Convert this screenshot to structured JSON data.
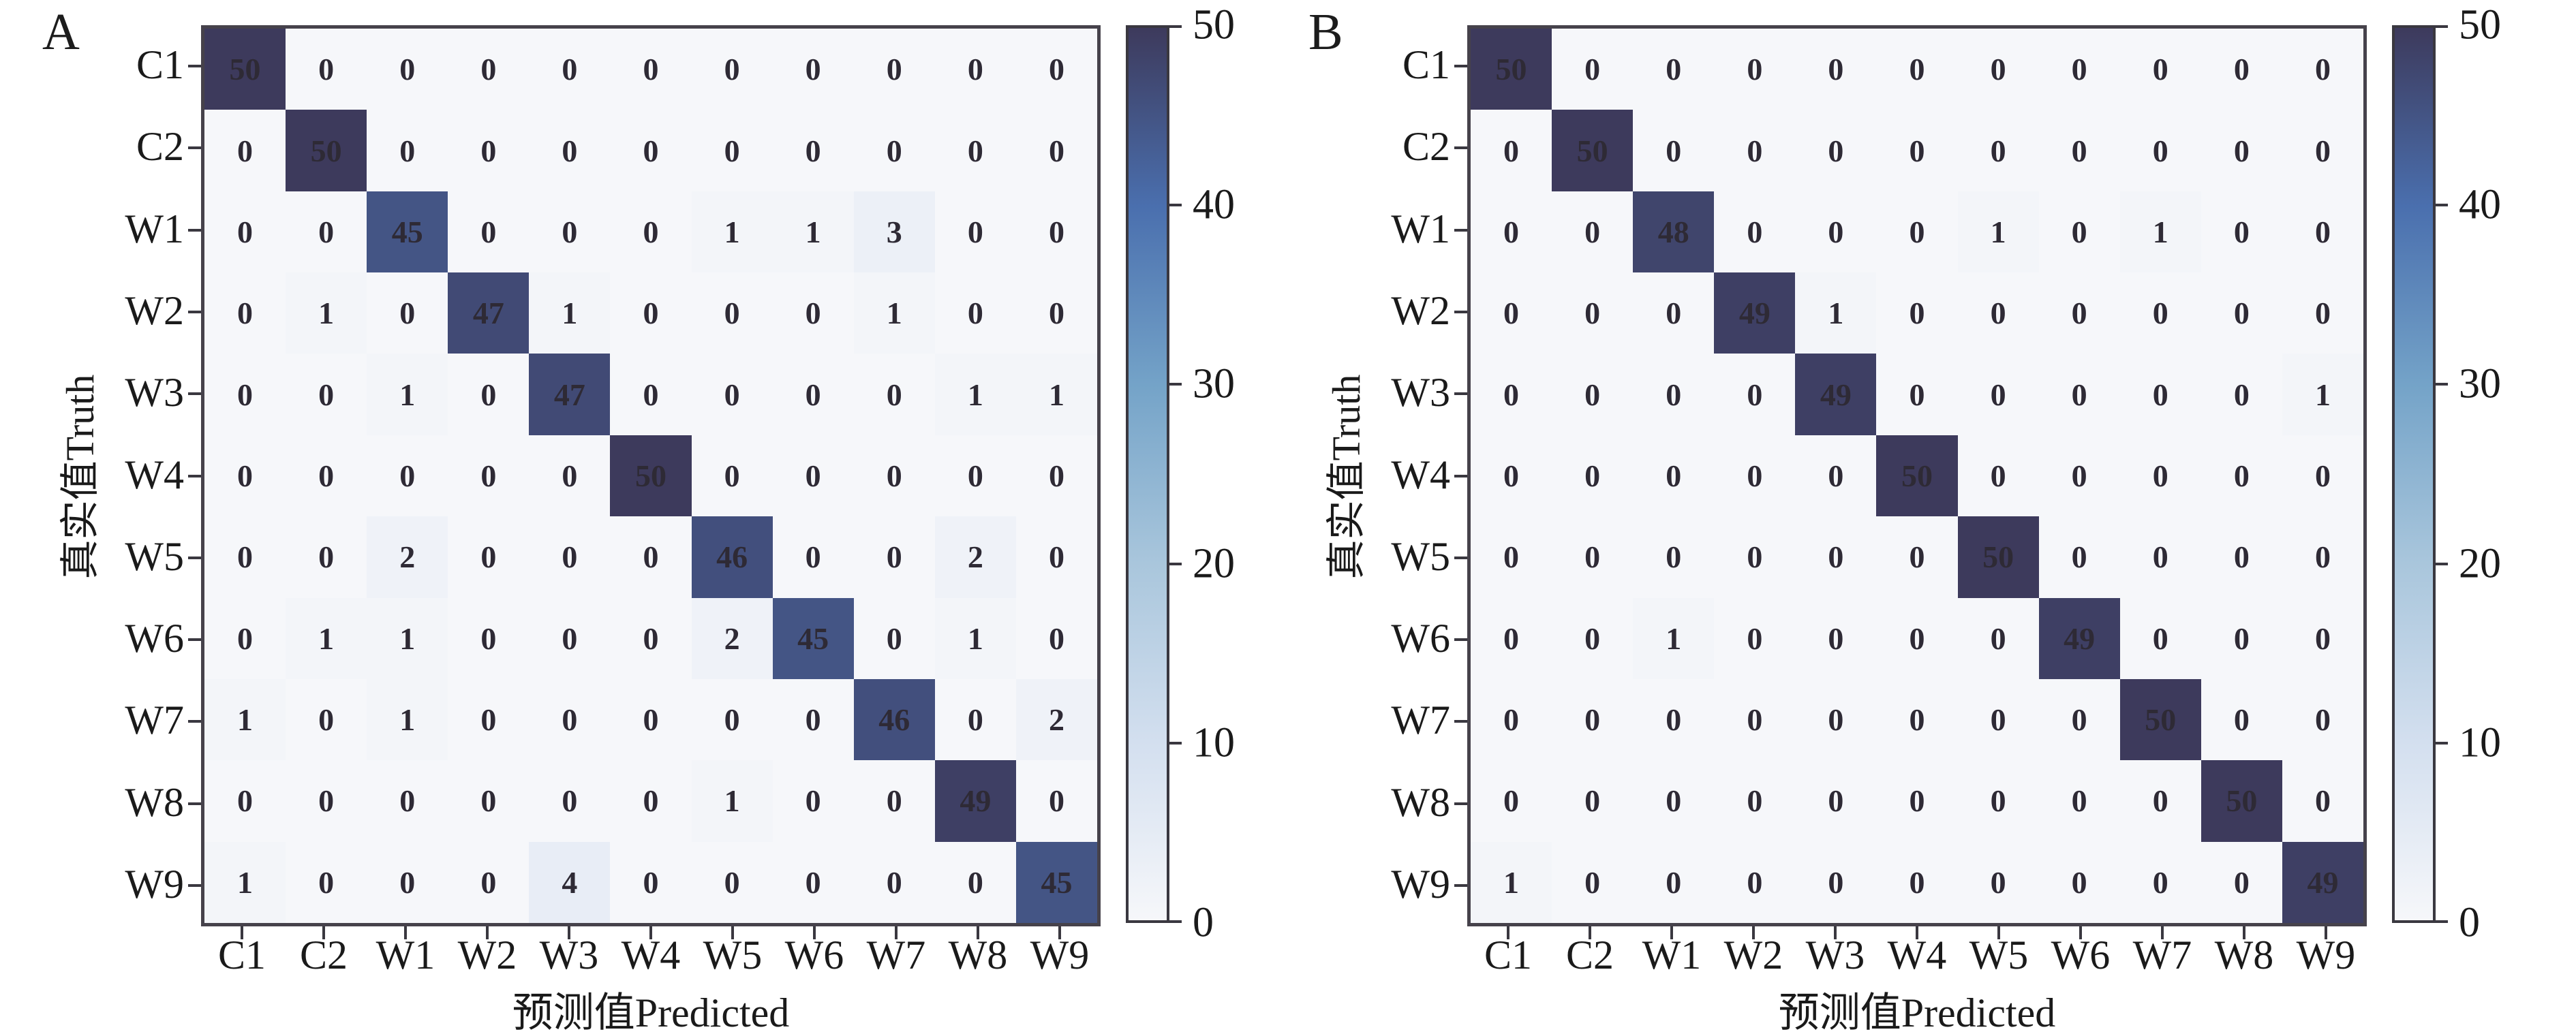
{
  "chart_data": [
    {
      "type": "heatmap",
      "panel_label": "A",
      "xlabel": "预测值Predicted",
      "ylabel": "真实值Truth",
      "x_categories": [
        "C1",
        "C2",
        "W1",
        "W2",
        "W3",
        "W4",
        "W5",
        "W6",
        "W7",
        "W8",
        "W9"
      ],
      "y_categories": [
        "C1",
        "C2",
        "W1",
        "W2",
        "W3",
        "W4",
        "W5",
        "W6",
        "W7",
        "W8",
        "W9"
      ],
      "matrix": [
        [
          50,
          0,
          0,
          0,
          0,
          0,
          0,
          0,
          0,
          0,
          0
        ],
        [
          0,
          50,
          0,
          0,
          0,
          0,
          0,
          0,
          0,
          0,
          0
        ],
        [
          0,
          0,
          45,
          0,
          0,
          0,
          1,
          1,
          3,
          0,
          0
        ],
        [
          0,
          1,
          0,
          47,
          1,
          0,
          0,
          0,
          1,
          0,
          0
        ],
        [
          0,
          0,
          1,
          0,
          47,
          0,
          0,
          0,
          0,
          1,
          1
        ],
        [
          0,
          0,
          0,
          0,
          0,
          50,
          0,
          0,
          0,
          0,
          0
        ],
        [
          0,
          0,
          2,
          0,
          0,
          0,
          46,
          0,
          0,
          2,
          0
        ],
        [
          0,
          1,
          1,
          0,
          0,
          0,
          2,
          45,
          0,
          1,
          0
        ],
        [
          1,
          0,
          1,
          0,
          0,
          0,
          0,
          0,
          46,
          0,
          2
        ],
        [
          0,
          0,
          0,
          0,
          0,
          0,
          1,
          0,
          0,
          49,
          0
        ],
        [
          1,
          0,
          0,
          0,
          4,
          0,
          0,
          0,
          0,
          0,
          45
        ]
      ],
      "colorbar": {
        "min": 0,
        "max": 50,
        "ticks": [
          50,
          40,
          30,
          20,
          10,
          0
        ]
      }
    },
    {
      "type": "heatmap",
      "panel_label": "B",
      "xlabel": "预测值Predicted",
      "ylabel": "真实值Truth",
      "x_categories": [
        "C1",
        "C2",
        "W1",
        "W2",
        "W3",
        "W4",
        "W5",
        "W6",
        "W7",
        "W8",
        "W9"
      ],
      "y_categories": [
        "C1",
        "C2",
        "W1",
        "W2",
        "W3",
        "W4",
        "W5",
        "W6",
        "W7",
        "W8",
        "W9"
      ],
      "matrix": [
        [
          50,
          0,
          0,
          0,
          0,
          0,
          0,
          0,
          0,
          0,
          0
        ],
        [
          0,
          50,
          0,
          0,
          0,
          0,
          0,
          0,
          0,
          0,
          0
        ],
        [
          0,
          0,
          48,
          0,
          0,
          0,
          1,
          0,
          1,
          0,
          0
        ],
        [
          0,
          0,
          0,
          49,
          1,
          0,
          0,
          0,
          0,
          0,
          0
        ],
        [
          0,
          0,
          0,
          0,
          49,
          0,
          0,
          0,
          0,
          0,
          1
        ],
        [
          0,
          0,
          0,
          0,
          0,
          50,
          0,
          0,
          0,
          0,
          0
        ],
        [
          0,
          0,
          0,
          0,
          0,
          0,
          50,
          0,
          0,
          0,
          0
        ],
        [
          0,
          0,
          1,
          0,
          0,
          0,
          0,
          49,
          0,
          0,
          0
        ],
        [
          0,
          0,
          0,
          0,
          0,
          0,
          0,
          0,
          50,
          0,
          0
        ],
        [
          0,
          0,
          0,
          0,
          0,
          0,
          0,
          0,
          0,
          50,
          0
        ],
        [
          1,
          0,
          0,
          0,
          0,
          0,
          0,
          0,
          0,
          0,
          49
        ]
      ],
      "colorbar": {
        "min": 0,
        "max": 50,
        "ticks": [
          50,
          40,
          30,
          20,
          10,
          0
        ]
      }
    }
  ],
  "colormap_stops": [
    {
      "value": 0,
      "color": "#f6f7fa"
    },
    {
      "value": 10,
      "color": "#d3dfef"
    },
    {
      "value": 20,
      "color": "#a9c6dc"
    },
    {
      "value": 30,
      "color": "#74a3c8"
    },
    {
      "value": 40,
      "color": "#4a6fae"
    },
    {
      "value": 50,
      "color": "#3d3a5c"
    }
  ],
  "colors": {
    "plot_border": "#46424b",
    "tick": "#3a3840",
    "cell_text": "#2e2a35"
  }
}
